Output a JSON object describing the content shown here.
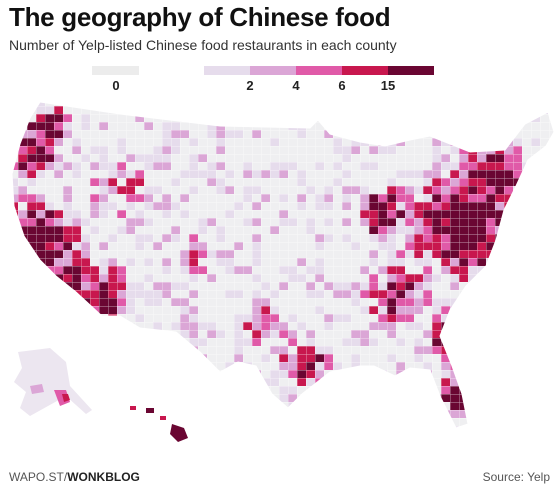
{
  "title": "The geography of Chinese food",
  "subtitle": "Number of Yelp-listed Chinese food restaurants in each county",
  "legend": {
    "labels": [
      "0",
      "2",
      "4",
      "6",
      "15"
    ],
    "colors": [
      "#ececec",
      "#e6dcec",
      "#dba6d6",
      "#e05aa8",
      "#c8174e",
      "#6a0632"
    ]
  },
  "footer": {
    "source_prefix": "WAPO.ST/",
    "source_brand": "WONKBLOG",
    "credit": "Source: Yelp"
  }
}
